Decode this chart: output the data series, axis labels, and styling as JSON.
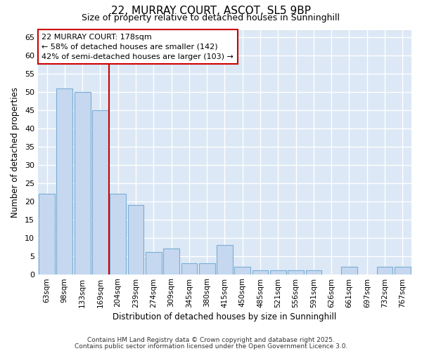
{
  "title1": "22, MURRAY COURT, ASCOT, SL5 9BP",
  "title2": "Size of property relative to detached houses in Sunninghill",
  "xlabel": "Distribution of detached houses by size in Sunninghill",
  "ylabel": "Number of detached properties",
  "categories": [
    "63sqm",
    "98sqm",
    "133sqm",
    "169sqm",
    "204sqm",
    "239sqm",
    "274sqm",
    "309sqm",
    "345sqm",
    "380sqm",
    "415sqm",
    "450sqm",
    "485sqm",
    "521sqm",
    "556sqm",
    "591sqm",
    "626sqm",
    "661sqm",
    "697sqm",
    "732sqm",
    "767sqm"
  ],
  "values": [
    22,
    51,
    50,
    45,
    22,
    19,
    6,
    7,
    3,
    3,
    8,
    2,
    1,
    1,
    1,
    1,
    0,
    2,
    0,
    2,
    2
  ],
  "bar_color": "#c5d8f0",
  "bar_edge_color": "#7aadd4",
  "red_line_x": 3.5,
  "annotation_line1": "22 MURRAY COURT: 178sqm",
  "annotation_line2": "← 58% of detached houses are smaller (142)",
  "annotation_line3": "42% of semi-detached houses are larger (103) →",
  "annotation_box_color": "#ffffff",
  "annotation_box_edge_color": "#cc0000",
  "ylim": [
    0,
    67
  ],
  "yticks": [
    0,
    5,
    10,
    15,
    20,
    25,
    30,
    35,
    40,
    45,
    50,
    55,
    60,
    65
  ],
  "fig_background_color": "#ffffff",
  "plot_bg_color": "#dce8f5",
  "grid_color": "#ffffff",
  "footer1": "Contains HM Land Registry data © Crown copyright and database right 2025.",
  "footer2": "Contains public sector information licensed under the Open Government Licence 3.0."
}
